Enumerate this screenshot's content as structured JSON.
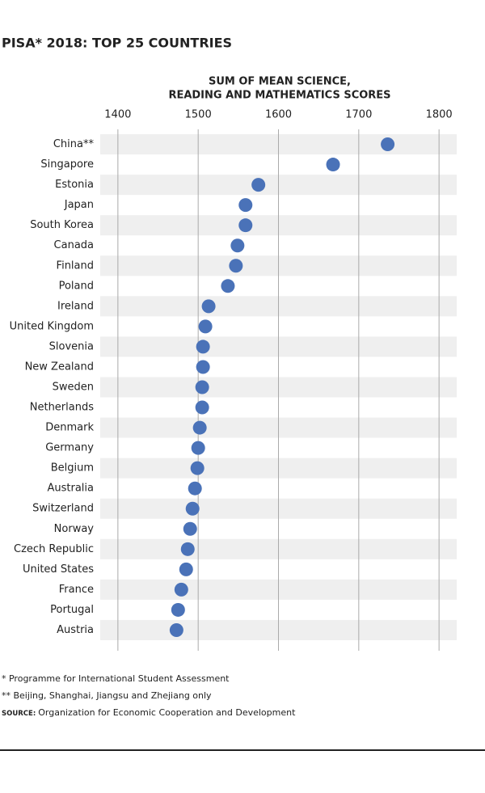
{
  "chart_data": {
    "type": "dot",
    "title": "PISA* 2018: TOP 25 COUNTRIES",
    "x_label": [
      "SUM OF MEAN SCIENCE,",
      "READING AND MATHEMATICS SCORES"
    ],
    "categories": [
      "China**",
      "Singapore",
      "Estonia",
      "Japan",
      "South Korea",
      "Canada",
      "Finland",
      "Poland",
      "Ireland",
      "United Kingdom",
      "Slovenia",
      "New Zealand",
      "Sweden",
      "Netherlands",
      "Denmark",
      "Germany",
      "Belgium",
      "Australia",
      "Switzerland",
      "Norway",
      "Czech Republic",
      "United States",
      "France",
      "Portugal",
      "Austria"
    ],
    "values": [
      1736,
      1668,
      1575,
      1559,
      1559,
      1549,
      1547,
      1537,
      1513,
      1509,
      1506,
      1506,
      1505,
      1505,
      1502,
      1500,
      1499,
      1496,
      1493,
      1490,
      1487,
      1485,
      1479,
      1475,
      1473
    ],
    "color": "#4a72b8",
    "xlim": [
      1378,
      1822
    ],
    "xticks": [
      1400,
      1500,
      1600,
      1700,
      1800
    ],
    "grid": true,
    "notes": [
      "* Programme for International Student Assessment",
      "** Beijing, Shanghai, Jiangsu and Zhejiang only"
    ],
    "source_label": "SOURCE:",
    "source": "Organization for Economic Cooperation and Development"
  }
}
